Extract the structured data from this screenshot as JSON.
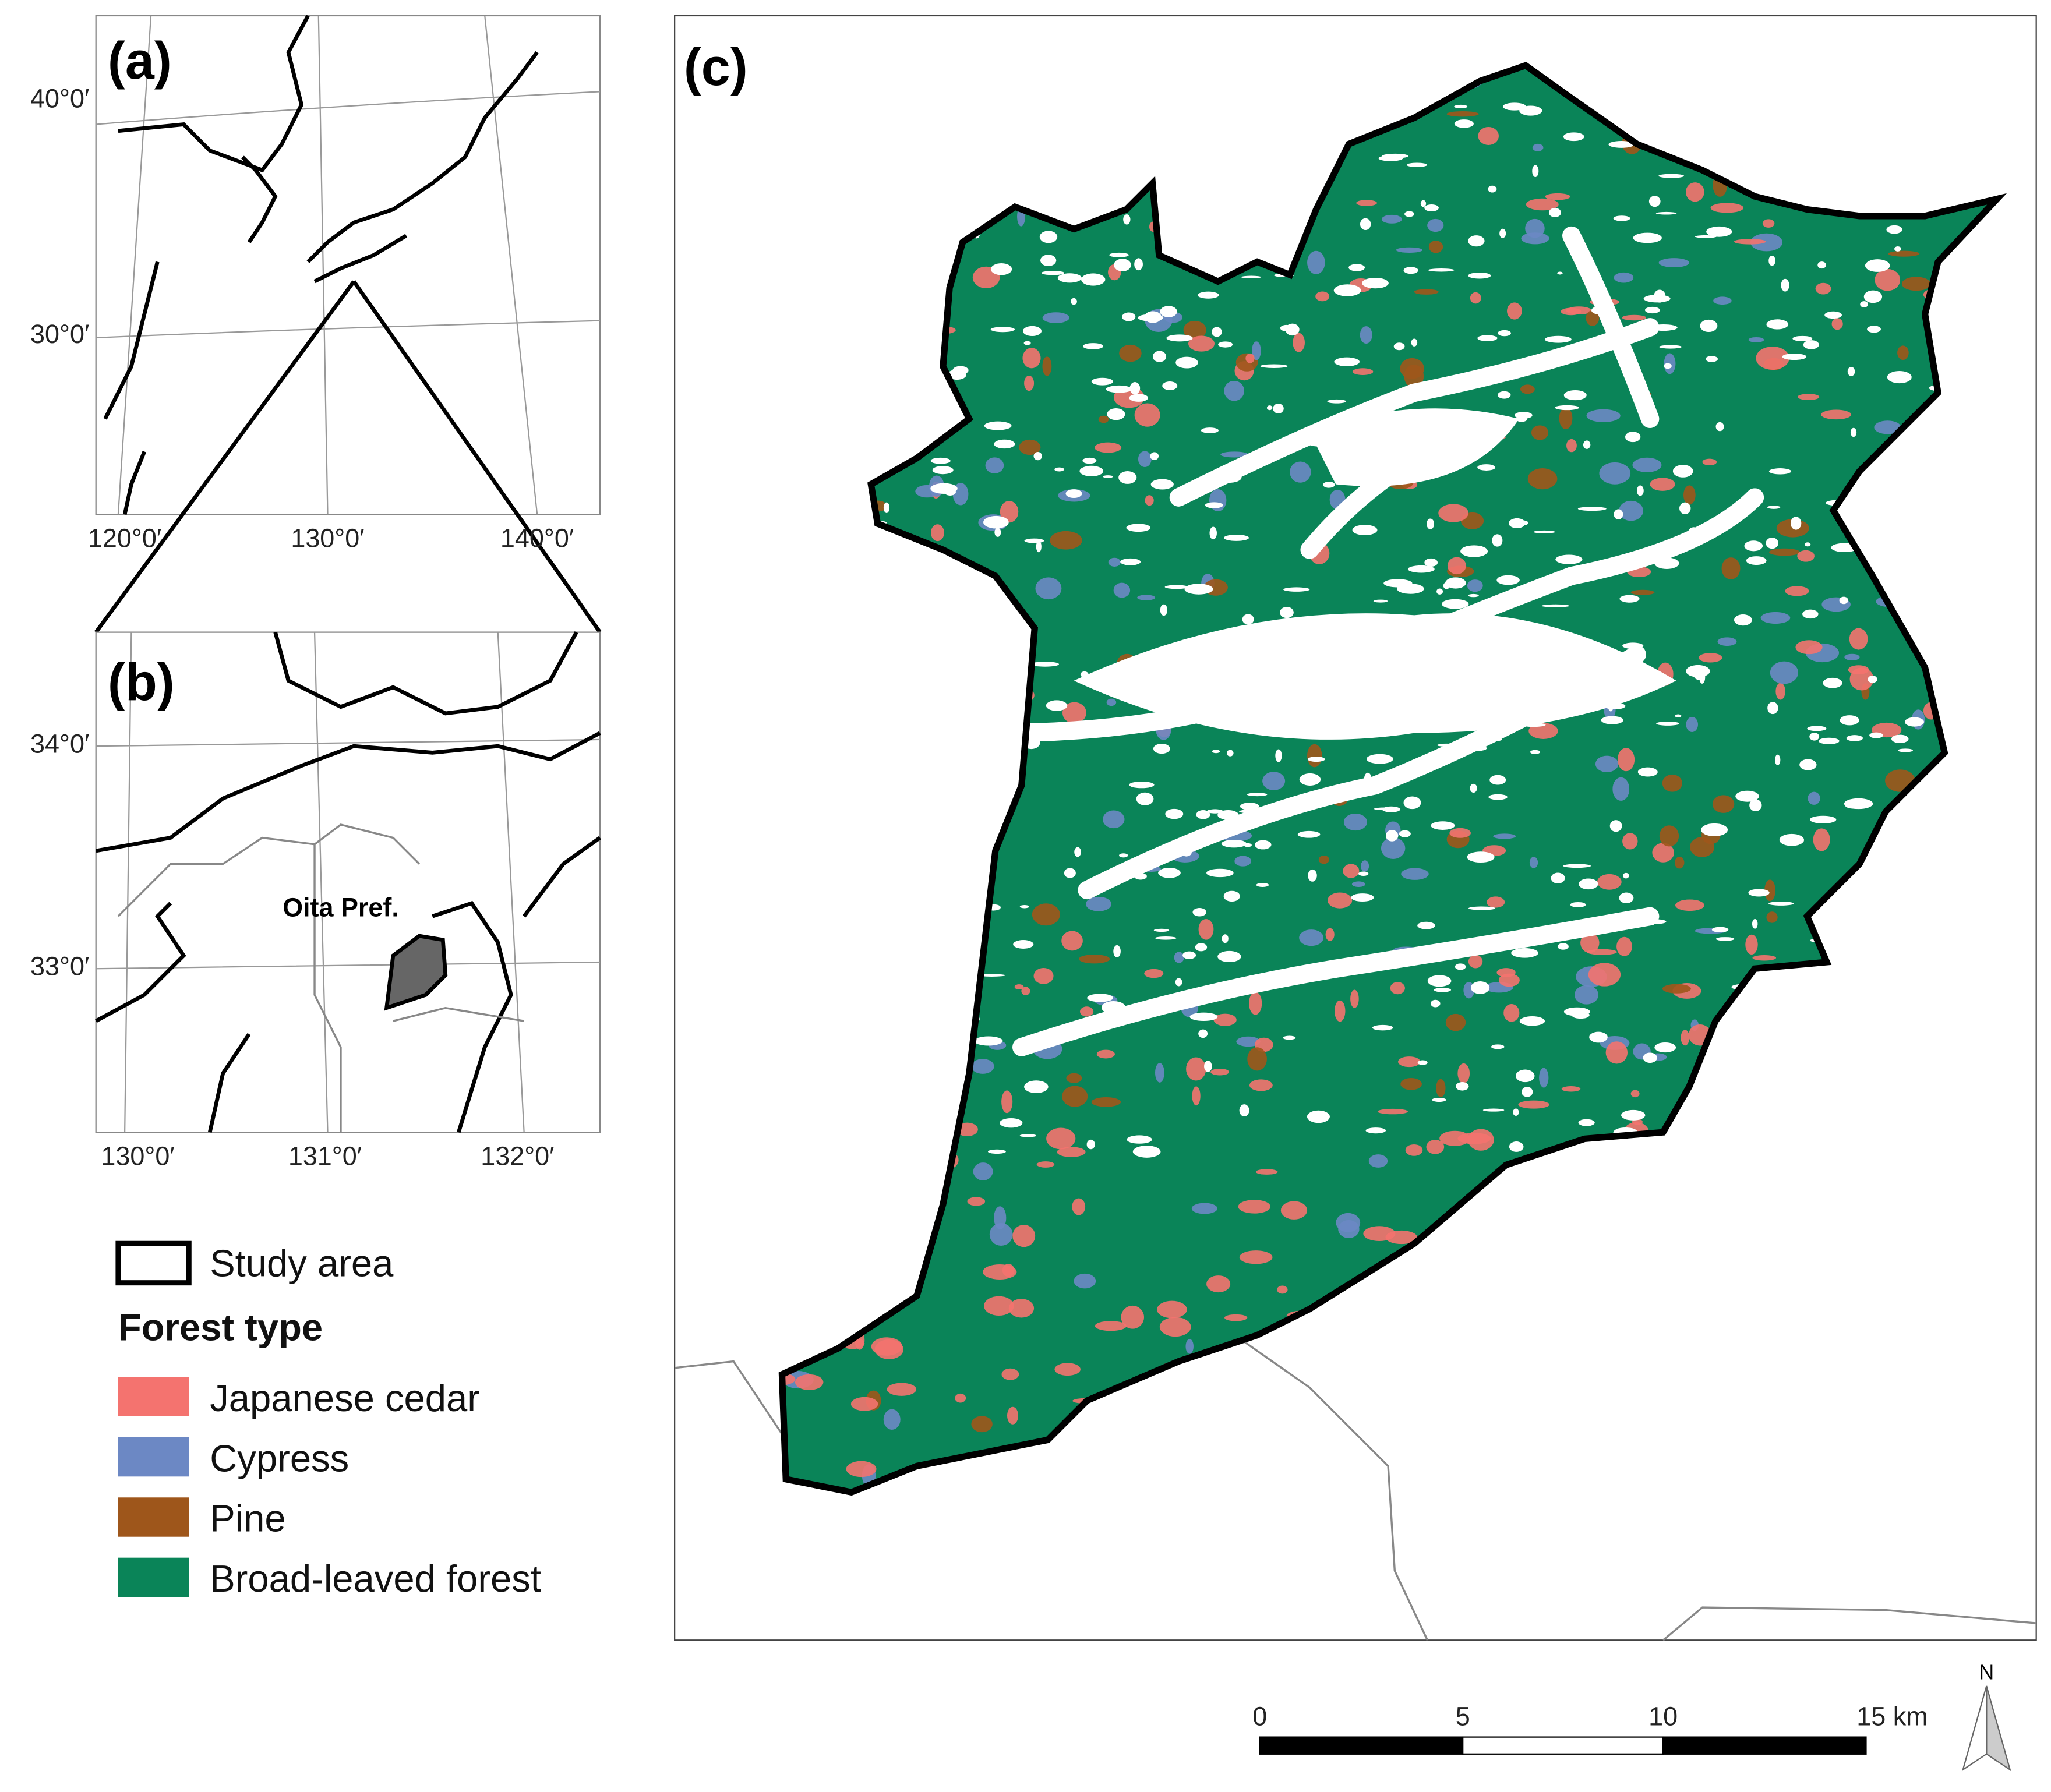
{
  "panel_a": {
    "label": "(a)",
    "lat_labels": [
      "40°0′",
      "30°0′"
    ],
    "lon_labels": [
      "120°0′",
      "130°0′",
      "140°0′"
    ]
  },
  "panel_b": {
    "label": "(b)",
    "lat_labels": [
      "34°0′",
      "33°0′"
    ],
    "lon_labels": [
      "130°0′",
      "131°0′",
      "132°0′"
    ],
    "place_label": "Oita Pref."
  },
  "panel_c": {
    "label": "(c)"
  },
  "legend": {
    "study_area": "Study area",
    "title": "Forest type",
    "items": [
      {
        "label": "Japanese cedar",
        "color": "#f4736f"
      },
      {
        "label": "Cypress",
        "color": "#6c88c4"
      },
      {
        "label": "Pine",
        "color": "#9e561b"
      },
      {
        "label": "Broad-leaved forest",
        "color": "#0a8458"
      }
    ]
  },
  "scale_bar": {
    "labels": [
      "0",
      "5",
      "10",
      "15 km"
    ]
  },
  "north_arrow": "N"
}
